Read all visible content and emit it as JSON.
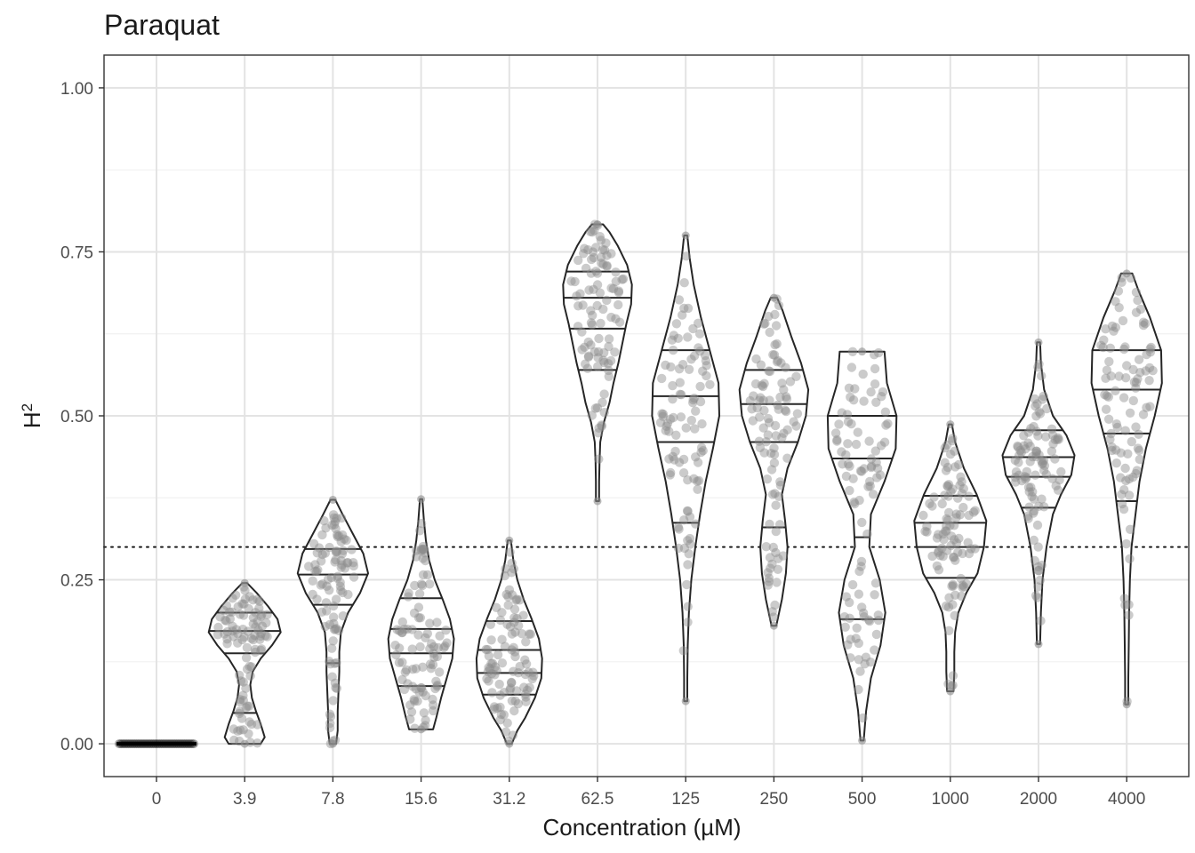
{
  "chart_data": {
    "type": "violin",
    "title": "Paraquat",
    "xlabel": "Concentration (µM)",
    "ylabel_base": "H",
    "ylabel_sup": "2",
    "ylim": [
      -0.05,
      1.05
    ],
    "y_ticks": [
      "0.00",
      "0.25",
      "0.50",
      "0.75",
      "1.00"
    ],
    "y_tick_values": [
      0,
      0.25,
      0.5,
      0.75,
      1.0
    ],
    "reference_line": {
      "y": 0.3,
      "style": "dotted"
    },
    "grid": true,
    "point_color": "#8c8c8c",
    "outline_color": "#262626",
    "categories": [
      "0",
      "3.9",
      "7.8",
      "15.6",
      "31.2",
      "62.5",
      "125",
      "250",
      "500",
      "1000",
      "2000",
      "4000"
    ],
    "groups": [
      {
        "label": "0",
        "min": 0.0,
        "max": 0.0,
        "quantiles": [],
        "collapsed": true,
        "shape": []
      },
      {
        "label": "3.9",
        "min": 0.0,
        "max": 0.245,
        "quantiles": [
          0.047,
          0.138,
          0.172,
          0.2
        ],
        "shape": [
          [
            0.0,
            0.4
          ],
          [
            0.01,
            0.5
          ],
          [
            0.03,
            0.4
          ],
          [
            0.05,
            0.28
          ],
          [
            0.07,
            0.18
          ],
          [
            0.09,
            0.14
          ],
          [
            0.11,
            0.2
          ],
          [
            0.13,
            0.4
          ],
          [
            0.15,
            0.68
          ],
          [
            0.17,
            0.9
          ],
          [
            0.19,
            0.82
          ],
          [
            0.21,
            0.58
          ],
          [
            0.23,
            0.3
          ],
          [
            0.245,
            0.06
          ]
        ]
      },
      {
        "label": "7.8",
        "min": 0.0,
        "max": 0.372,
        "quantiles": [
          0.123,
          0.212,
          0.258,
          0.297
        ],
        "shape": [
          [
            0.0,
            0.08
          ],
          [
            0.02,
            0.12
          ],
          [
            0.05,
            0.12
          ],
          [
            0.08,
            0.14
          ],
          [
            0.11,
            0.16
          ],
          [
            0.14,
            0.16
          ],
          [
            0.17,
            0.2
          ],
          [
            0.2,
            0.38
          ],
          [
            0.23,
            0.68
          ],
          [
            0.26,
            0.88
          ],
          [
            0.29,
            0.76
          ],
          [
            0.32,
            0.5
          ],
          [
            0.35,
            0.24
          ],
          [
            0.372,
            0.06
          ]
        ]
      },
      {
        "label": "15.6",
        "min": 0.022,
        "max": 0.373,
        "quantiles": [
          0.088,
          0.138,
          0.175,
          0.222
        ],
        "shape": [
          [
            0.022,
            0.3
          ],
          [
            0.04,
            0.38
          ],
          [
            0.07,
            0.5
          ],
          [
            0.1,
            0.64
          ],
          [
            0.13,
            0.78
          ],
          [
            0.16,
            0.82
          ],
          [
            0.19,
            0.72
          ],
          [
            0.22,
            0.54
          ],
          [
            0.25,
            0.34
          ],
          [
            0.28,
            0.2
          ],
          [
            0.31,
            0.12
          ],
          [
            0.34,
            0.07
          ],
          [
            0.373,
            0.03
          ]
        ]
      },
      {
        "label": "31.2",
        "min": 0.0,
        "max": 0.31,
        "quantiles": [
          0.075,
          0.108,
          0.143,
          0.187
        ],
        "shape": [
          [
            0.0,
            0.06
          ],
          [
            0.02,
            0.2
          ],
          [
            0.04,
            0.4
          ],
          [
            0.07,
            0.64
          ],
          [
            0.1,
            0.8
          ],
          [
            0.13,
            0.82
          ],
          [
            0.16,
            0.74
          ],
          [
            0.19,
            0.56
          ],
          [
            0.22,
            0.36
          ],
          [
            0.25,
            0.2
          ],
          [
            0.28,
            0.1
          ],
          [
            0.31,
            0.04
          ]
        ]
      },
      {
        "label": "62.5",
        "min": 0.37,
        "max": 0.792,
        "quantiles": [
          0.57,
          0.633,
          0.68,
          0.72
        ],
        "shape": [
          [
            0.37,
            0.04
          ],
          [
            0.4,
            0.04
          ],
          [
            0.43,
            0.05
          ],
          [
            0.46,
            0.07
          ],
          [
            0.49,
            0.16
          ],
          [
            0.52,
            0.3
          ],
          [
            0.55,
            0.4
          ],
          [
            0.58,
            0.52
          ],
          [
            0.61,
            0.62
          ],
          [
            0.64,
            0.72
          ],
          [
            0.67,
            0.84
          ],
          [
            0.7,
            0.86
          ],
          [
            0.73,
            0.74
          ],
          [
            0.76,
            0.5
          ],
          [
            0.78,
            0.3
          ],
          [
            0.792,
            0.14
          ]
        ]
      },
      {
        "label": "125",
        "min": 0.065,
        "max": 0.775,
        "quantiles": [
          0.337,
          0.46,
          0.53,
          0.6
        ],
        "shape": [
          [
            0.065,
            0.04
          ],
          [
            0.1,
            0.04
          ],
          [
            0.15,
            0.05
          ],
          [
            0.2,
            0.08
          ],
          [
            0.25,
            0.14
          ],
          [
            0.3,
            0.24
          ],
          [
            0.35,
            0.36
          ],
          [
            0.4,
            0.5
          ],
          [
            0.45,
            0.68
          ],
          [
            0.5,
            0.84
          ],
          [
            0.55,
            0.82
          ],
          [
            0.6,
            0.6
          ],
          [
            0.65,
            0.38
          ],
          [
            0.7,
            0.2
          ],
          [
            0.74,
            0.1
          ],
          [
            0.775,
            0.04
          ]
        ]
      },
      {
        "label": "250",
        "min": 0.18,
        "max": 0.68,
        "quantiles": [
          0.33,
          0.46,
          0.518,
          0.57
        ],
        "shape": [
          [
            0.18,
            0.06
          ],
          [
            0.22,
            0.2
          ],
          [
            0.26,
            0.3
          ],
          [
            0.3,
            0.34
          ],
          [
            0.34,
            0.28
          ],
          [
            0.38,
            0.2
          ],
          [
            0.42,
            0.34
          ],
          [
            0.46,
            0.6
          ],
          [
            0.5,
            0.8
          ],
          [
            0.54,
            0.86
          ],
          [
            0.58,
            0.68
          ],
          [
            0.62,
            0.44
          ],
          [
            0.66,
            0.22
          ],
          [
            0.68,
            0.08
          ]
        ]
      },
      {
        "label": "500",
        "min": 0.005,
        "max": 0.598,
        "quantiles": [
          0.19,
          0.315,
          0.435,
          0.5
        ],
        "shape": [
          [
            0.005,
            0.04
          ],
          [
            0.05,
            0.1
          ],
          [
            0.1,
            0.22
          ],
          [
            0.15,
            0.46
          ],
          [
            0.2,
            0.58
          ],
          [
            0.25,
            0.44
          ],
          [
            0.3,
            0.18
          ],
          [
            0.35,
            0.22
          ],
          [
            0.4,
            0.56
          ],
          [
            0.45,
            0.84
          ],
          [
            0.5,
            0.86
          ],
          [
            0.55,
            0.62
          ],
          [
            0.598,
            0.56
          ]
        ]
      },
      {
        "label": "1000",
        "min": 0.08,
        "max": 0.487,
        "quantiles": [
          0.253,
          0.3,
          0.337,
          0.378
        ],
        "shape": [
          [
            0.08,
            0.08
          ],
          [
            0.11,
            0.1
          ],
          [
            0.14,
            0.1
          ],
          [
            0.17,
            0.12
          ],
          [
            0.2,
            0.2
          ],
          [
            0.23,
            0.4
          ],
          [
            0.26,
            0.68
          ],
          [
            0.3,
            0.84
          ],
          [
            0.34,
            0.9
          ],
          [
            0.38,
            0.66
          ],
          [
            0.42,
            0.34
          ],
          [
            0.46,
            0.12
          ],
          [
            0.487,
            0.04
          ]
        ]
      },
      {
        "label": "2000",
        "min": 0.152,
        "max": 0.612,
        "quantiles": [
          0.36,
          0.407,
          0.437,
          0.478
        ],
        "shape": [
          [
            0.152,
            0.04
          ],
          [
            0.2,
            0.06
          ],
          [
            0.25,
            0.1
          ],
          [
            0.3,
            0.2
          ],
          [
            0.35,
            0.36
          ],
          [
            0.38,
            0.56
          ],
          [
            0.41,
            0.82
          ],
          [
            0.44,
            0.9
          ],
          [
            0.47,
            0.7
          ],
          [
            0.5,
            0.36
          ],
          [
            0.54,
            0.14
          ],
          [
            0.58,
            0.06
          ],
          [
            0.612,
            0.04
          ]
        ]
      },
      {
        "label": "4000",
        "min": 0.06,
        "max": 0.717,
        "quantiles": [
          0.37,
          0.473,
          0.54,
          0.6
        ],
        "shape": [
          [
            0.06,
            0.04
          ],
          [
            0.1,
            0.04
          ],
          [
            0.15,
            0.05
          ],
          [
            0.2,
            0.06
          ],
          [
            0.25,
            0.08
          ],
          [
            0.3,
            0.12
          ],
          [
            0.35,
            0.22
          ],
          [
            0.4,
            0.32
          ],
          [
            0.45,
            0.48
          ],
          [
            0.5,
            0.7
          ],
          [
            0.55,
            0.88
          ],
          [
            0.6,
            0.86
          ],
          [
            0.65,
            0.58
          ],
          [
            0.69,
            0.3
          ],
          [
            0.717,
            0.14
          ]
        ]
      }
    ]
  }
}
